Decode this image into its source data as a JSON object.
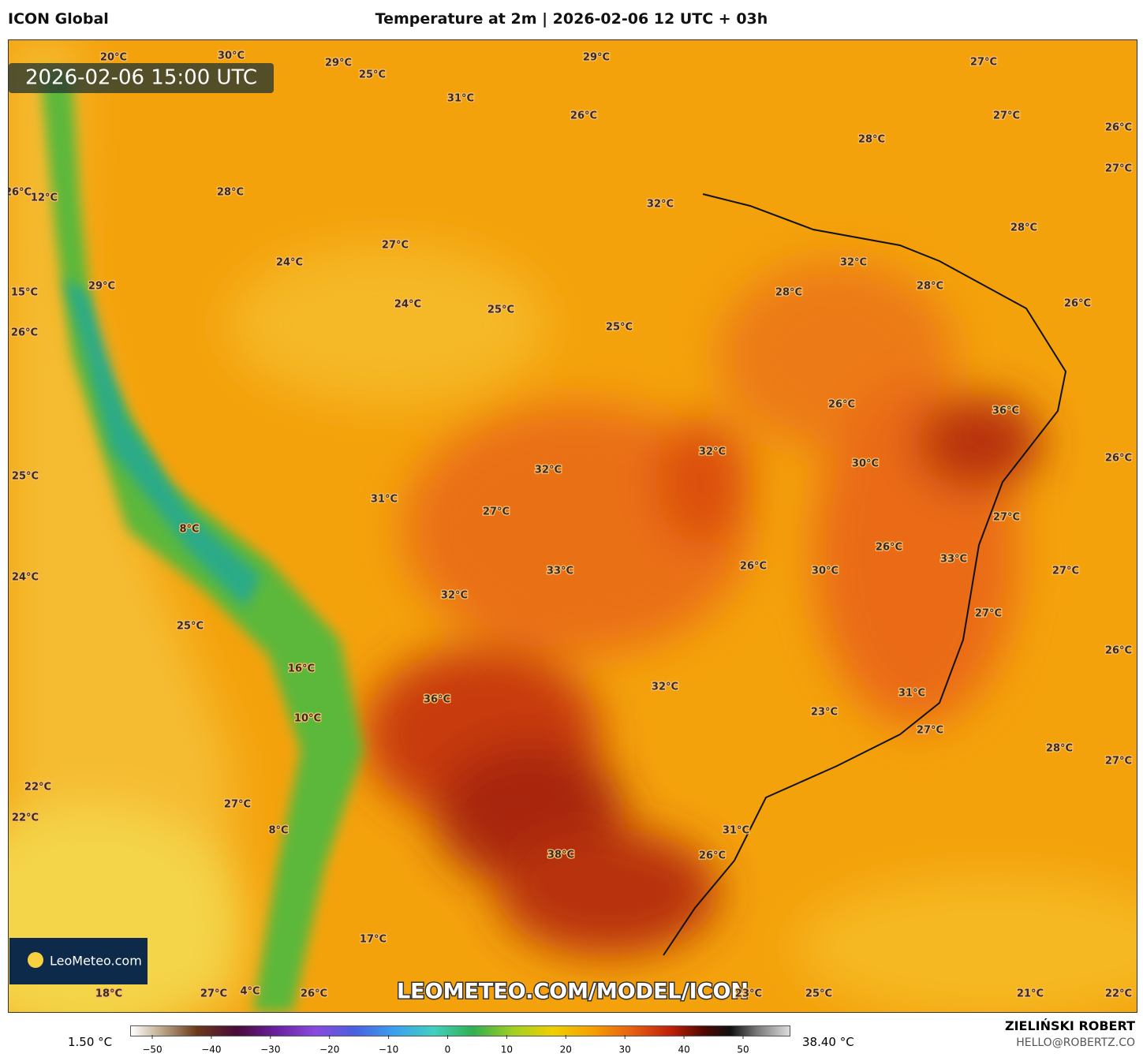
{
  "header": {
    "model": "ICON Global",
    "title": "Temperature at 2m | 2026-02-06 12 UTC + 03h"
  },
  "map": {
    "valid_time": "2026-02-06 15:00 UTC",
    "watermark": "LEOMETEO.COM/MODEL/ICON",
    "logo": "LeoMeteo.com",
    "labels": [
      "20°C",
      "30°C",
      "29°C",
      "25°C",
      "29°C",
      "27°C",
      "31°C",
      "26°C",
      "27°C",
      "26°C",
      "28°C",
      "27°C",
      "26°C",
      "12°C",
      "28°C",
      "32°C",
      "28°C",
      "27°C",
      "24°C",
      "32°C",
      "29°C",
      "28°C",
      "15°C",
      "28°C",
      "24°C",
      "26°C",
      "25°C",
      "25°C",
      "26°C",
      "26°C",
      "36°C",
      "32°C",
      "30°C",
      "26°C",
      "32°C",
      "25°C",
      "31°C",
      "27°C",
      "27°C",
      "8°C",
      "26°C",
      "33°C",
      "26°C",
      "33°C",
      "30°C",
      "27°C",
      "24°C",
      "32°C",
      "27°C",
      "25°C",
      "26°C",
      "16°C",
      "32°C",
      "31°C",
      "36°C",
      "23°C",
      "10°C",
      "27°C",
      "28°C",
      "27°C",
      "22°C",
      "27°C",
      "22°C",
      "8°C",
      "31°C",
      "38°C",
      "26°C",
      "17°C",
      "18°C",
      "27°C",
      "4°C",
      "26°C",
      "23°C",
      "25°C",
      "21°C",
      "22°C"
    ]
  },
  "colorbar": {
    "min_label": "1.50 °C",
    "max_label": "38.40 °C",
    "ticks": [
      {
        "value": -50,
        "label": "−50"
      },
      {
        "value": -40,
        "label": "−40"
      },
      {
        "value": -30,
        "label": "−30"
      },
      {
        "value": -20,
        "label": "−20"
      },
      {
        "value": -10,
        "label": "−10"
      },
      0,
      10,
      20,
      30,
      40,
      50
    ]
  },
  "footer": {
    "author": "ZIELIŃSKI ROBERT",
    "email": "HELLO@ROBERTZ.CO"
  }
}
